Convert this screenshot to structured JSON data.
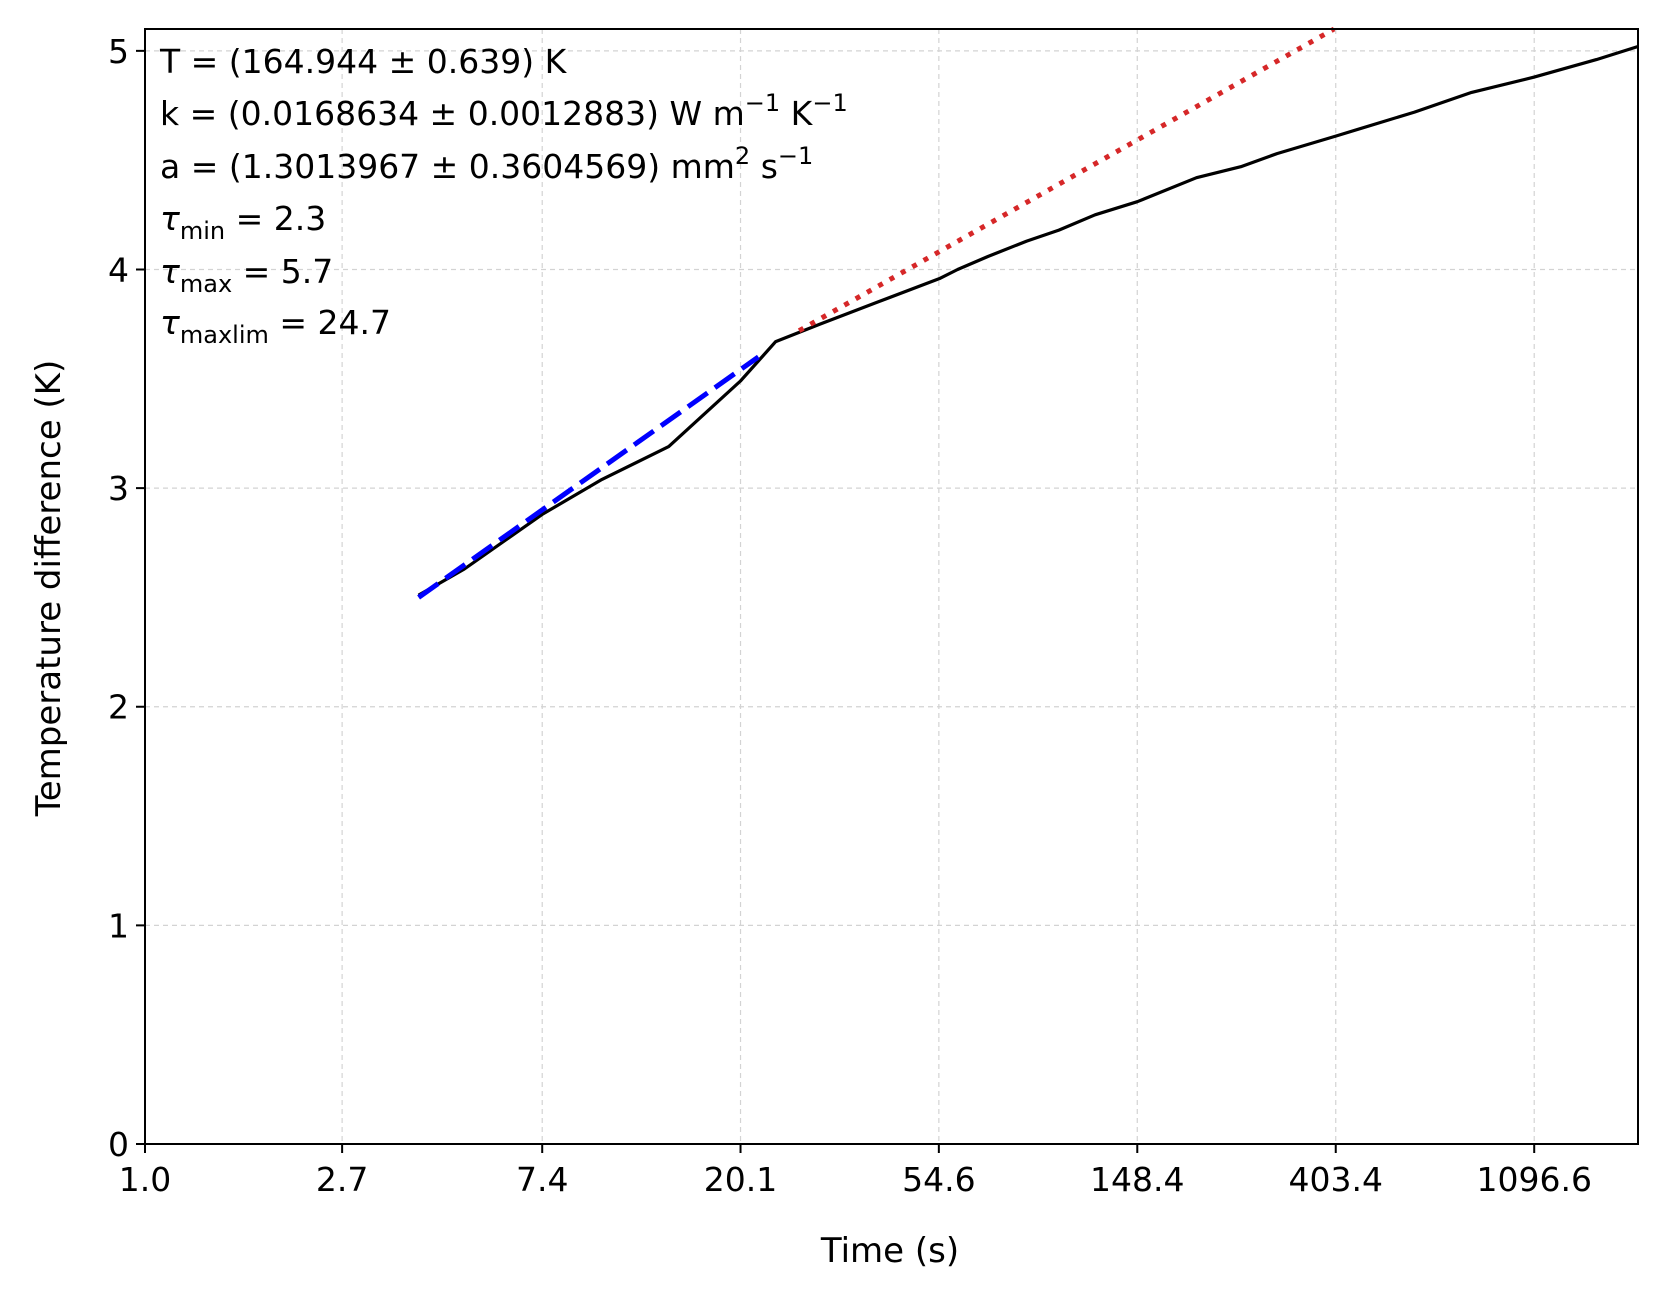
{
  "chart_data": {
    "type": "line",
    "xlabel": "Time (s)",
    "ylabel": "Temperature difference (K)",
    "x_scale": "log",
    "xlim": [
      1.0,
      1850
    ],
    "ylim": [
      0,
      5.1
    ],
    "grid": true,
    "x_ticks": [
      1.0,
      2.7,
      7.4,
      20.1,
      54.6,
      148.4,
      403.4,
      1096.6
    ],
    "x_tick_labels": [
      "1.0",
      "2.7",
      "7.4",
      "20.1",
      "54.6",
      "148.4",
      "403.4",
      "1096.6"
    ],
    "y_ticks": [
      0,
      1,
      2,
      3,
      4,
      5
    ],
    "y_tick_labels": [
      "0",
      "1",
      "2",
      "3",
      "4",
      "5"
    ],
    "annotations": {
      "T": "T = (164.944 ± 0.639) K",
      "k_main": "k = (0.0168634 ± 0.0012883) W m",
      "k_exp1": "−1",
      "k_unit2": " K",
      "k_exp2": "−1",
      "a_main": "a = (1.3013967 ± 0.3604569) mm",
      "a_exp1": "2",
      "a_unit2": " s",
      "a_exp2": "−1",
      "tau_symbol": "τ",
      "tau_min_sub": "min",
      "tau_min_val": " = 2.3",
      "tau_max_sub": "max",
      "tau_max_val": " = 5.7",
      "tau_maxlim_sub": "maxlim",
      "tau_maxlim_val": " = 24.7"
    },
    "series": [
      {
        "style": "solid",
        "color": "#000000",
        "x": [
          3.97,
          5.0,
          7.4,
          10.0,
          14.0,
          20.1,
          24.0,
          30.0,
          40.0,
          55.0,
          60.0,
          70.0,
          85.0,
          100.0,
          120.0,
          148.4,
          200.0,
          250.0,
          300.0,
          403.4,
          600.0,
          800.0,
          1096.6,
          1500.0,
          1850.0
        ],
        "y": [
          2.51,
          2.63,
          2.88,
          3.04,
          3.19,
          3.49,
          3.67,
          3.75,
          3.85,
          3.96,
          4.0,
          4.06,
          4.13,
          4.18,
          4.25,
          4.31,
          4.42,
          4.47,
          4.53,
          4.61,
          4.72,
          4.81,
          4.88,
          4.96,
          5.02
        ]
      },
      {
        "style": "dashed",
        "color": "#0000ff",
        "x": [
          3.97,
          22.0
        ],
        "y": [
          2.5,
          3.6
        ]
      },
      {
        "style": "dotted",
        "color": "#d62728",
        "x": [
          27.0,
          400.0
        ],
        "y": [
          3.72,
          5.1
        ]
      }
    ]
  }
}
